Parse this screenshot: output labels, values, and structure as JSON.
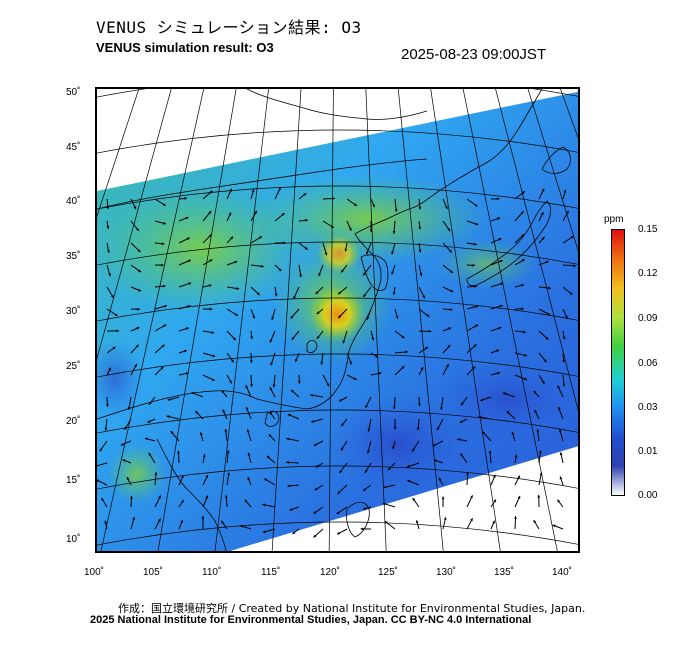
{
  "header": {
    "title_jp": "VENUS シミュレーション結果: O3",
    "title_en": "VENUS simulation result: O3",
    "timestamp": "2025-08-23 09:00JST"
  },
  "map": {
    "lat_ticks": [
      "50˚",
      "45˚",
      "40˚",
      "35˚",
      "30˚",
      "25˚",
      "20˚",
      "15˚",
      "10˚"
    ],
    "lon_ticks": [
      "100˚",
      "105˚",
      "110˚",
      "115˚",
      "120˚",
      "125˚",
      "130˚",
      "135˚",
      "140˚"
    ],
    "lat_range": [
      9,
      51
    ],
    "lon_range": [
      100,
      141
    ],
    "variable": "O3"
  },
  "colorbar": {
    "unit": "ppm",
    "labels": [
      "0.15",
      "0.12",
      "0.09",
      "0.06",
      "0.03",
      "0.01",
      "0.00"
    ],
    "colors": [
      "#e01010",
      "#f07010",
      "#f0c020",
      "#b0e040",
      "#40d040",
      "#20d0d0",
      "#2090f0",
      "#2050d0",
      "#3040b0",
      "#ffffff"
    ]
  },
  "footer": {
    "credit_line": "作成：国立環境研究所 / Created by National Institute for Environmental Studies, Japan.",
    "copyright_line": "2025 National Institute for Environmental Studies, Japan. CC BY-NC 4.0 International"
  }
}
